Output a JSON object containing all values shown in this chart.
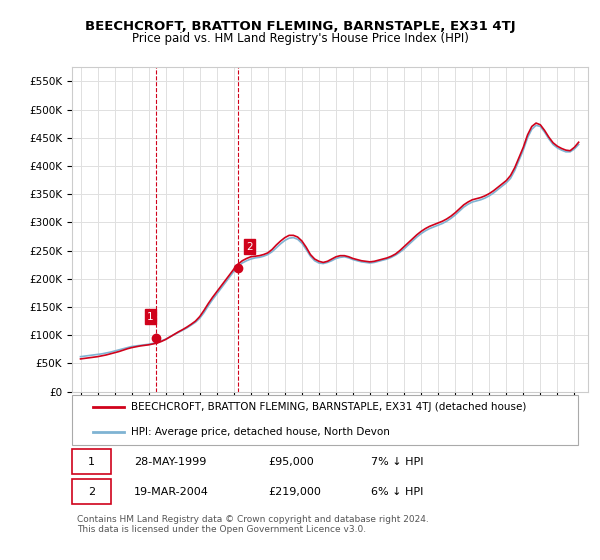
{
  "title": "BEECHCROFT, BRATTON FLEMING, BARNSTAPLE, EX31 4TJ",
  "subtitle": "Price paid vs. HM Land Registry's House Price Index (HPI)",
  "ylabel_ticks": [
    "£0",
    "£50K",
    "£100K",
    "£150K",
    "£200K",
    "£250K",
    "£300K",
    "£350K",
    "£400K",
    "£450K",
    "£500K",
    "£550K"
  ],
  "ytick_values": [
    0,
    50000,
    100000,
    150000,
    200000,
    250000,
    300000,
    350000,
    400000,
    450000,
    500000,
    550000
  ],
  "ylim": [
    0,
    575000
  ],
  "sale1_date": 1999.41,
  "sale1_price": 95000,
  "sale1_label": "1",
  "sale2_date": 2004.22,
  "sale2_price": 219000,
  "sale2_label": "2",
  "red_color": "#d0021b",
  "blue_color": "#7fb3d3",
  "vline_color": "#d0021b",
  "legend_label_red": "BEECHCROFT, BRATTON FLEMING, BARNSTAPLE, EX31 4TJ (detached house)",
  "legend_label_blue": "HPI: Average price, detached house, North Devon",
  "table_data": [
    {
      "num": "1",
      "date": "28-MAY-1999",
      "price": "£95,000",
      "hpi": "7% ↓ HPI"
    },
    {
      "num": "2",
      "date": "19-MAR-2004",
      "price": "£219,000",
      "hpi": "6% ↓ HPI"
    }
  ],
  "footer": "Contains HM Land Registry data © Crown copyright and database right 2024.\nThis data is licensed under the Open Government Licence v3.0.",
  "background_color": "#ffffff",
  "grid_color": "#e0e0e0",
  "hpi_data_years": [
    1995.0,
    1995.25,
    1995.5,
    1995.75,
    1996.0,
    1996.25,
    1996.5,
    1996.75,
    1997.0,
    1997.25,
    1997.5,
    1997.75,
    1998.0,
    1998.25,
    1998.5,
    1998.75,
    1999.0,
    1999.25,
    1999.5,
    1999.75,
    2000.0,
    2000.25,
    2000.5,
    2000.75,
    2001.0,
    2001.25,
    2001.5,
    2001.75,
    2002.0,
    2002.25,
    2002.5,
    2002.75,
    2003.0,
    2003.25,
    2003.5,
    2003.75,
    2004.0,
    2004.25,
    2004.5,
    2004.75,
    2005.0,
    2005.25,
    2005.5,
    2005.75,
    2006.0,
    2006.25,
    2006.5,
    2006.75,
    2007.0,
    2007.25,
    2007.5,
    2007.75,
    2008.0,
    2008.25,
    2008.5,
    2008.75,
    2009.0,
    2009.25,
    2009.5,
    2009.75,
    2010.0,
    2010.25,
    2010.5,
    2010.75,
    2011.0,
    2011.25,
    2011.5,
    2011.75,
    2012.0,
    2012.25,
    2012.5,
    2012.75,
    2013.0,
    2013.25,
    2013.5,
    2013.75,
    2014.0,
    2014.25,
    2014.5,
    2014.75,
    2015.0,
    2015.25,
    2015.5,
    2015.75,
    2016.0,
    2016.25,
    2016.5,
    2016.75,
    2017.0,
    2017.25,
    2017.5,
    2017.75,
    2018.0,
    2018.25,
    2018.5,
    2018.75,
    2019.0,
    2019.25,
    2019.5,
    2019.75,
    2020.0,
    2020.25,
    2020.5,
    2020.75,
    2021.0,
    2021.25,
    2021.5,
    2021.75,
    2022.0,
    2022.25,
    2022.5,
    2022.75,
    2023.0,
    2023.25,
    2023.5,
    2023.75,
    2024.0,
    2024.25
  ],
  "hpi_values": [
    62000,
    63000,
    64000,
    65000,
    66000,
    67000,
    68500,
    70000,
    72000,
    74000,
    76000,
    78000,
    80000,
    81000,
    82000,
    83000,
    84000,
    85500,
    87000,
    90000,
    93000,
    97000,
    101000,
    105000,
    109000,
    113000,
    118000,
    123000,
    130000,
    140000,
    152000,
    163000,
    173000,
    183000,
    193000,
    203000,
    213000,
    222000,
    228000,
    232000,
    235000,
    237000,
    238000,
    240000,
    243000,
    248000,
    255000,
    262000,
    268000,
    272000,
    273000,
    270000,
    263000,
    252000,
    240000,
    232000,
    228000,
    227000,
    229000,
    232000,
    236000,
    238000,
    239000,
    237000,
    234000,
    232000,
    230000,
    229000,
    228000,
    229000,
    231000,
    233000,
    235000,
    238000,
    242000,
    247000,
    253000,
    260000,
    267000,
    274000,
    280000,
    285000,
    289000,
    292000,
    295000,
    298000,
    302000,
    307000,
    313000,
    320000,
    327000,
    332000,
    336000,
    338000,
    340000,
    343000,
    347000,
    352000,
    358000,
    364000,
    370000,
    378000,
    392000,
    410000,
    428000,
    450000,
    465000,
    472000,
    470000,
    460000,
    448000,
    438000,
    432000,
    428000,
    425000,
    425000,
    430000,
    438000
  ],
  "red_line_years": [
    1995.0,
    1995.25,
    1995.5,
    1995.75,
    1996.0,
    1996.25,
    1996.5,
    1996.75,
    1997.0,
    1997.25,
    1997.5,
    1997.75,
    1998.0,
    1998.25,
    1998.5,
    1998.75,
    1999.0,
    1999.25,
    1999.5,
    1999.75,
    2000.0,
    2000.25,
    2000.5,
    2000.75,
    2001.0,
    2001.25,
    2001.5,
    2001.75,
    2002.0,
    2002.25,
    2002.5,
    2002.75,
    2003.0,
    2003.25,
    2003.5,
    2003.75,
    2004.0,
    2004.25,
    2004.5,
    2004.75,
    2005.0,
    2005.25,
    2005.5,
    2005.75,
    2006.0,
    2006.25,
    2006.5,
    2006.75,
    2007.0,
    2007.25,
    2007.5,
    2007.75,
    2008.0,
    2008.25,
    2008.5,
    2008.75,
    2009.0,
    2009.25,
    2009.5,
    2009.75,
    2010.0,
    2010.25,
    2010.5,
    2010.75,
    2011.0,
    2011.25,
    2011.5,
    2011.75,
    2012.0,
    2012.25,
    2012.5,
    2012.75,
    2013.0,
    2013.25,
    2013.5,
    2013.75,
    2014.0,
    2014.25,
    2014.5,
    2014.75,
    2015.0,
    2015.25,
    2015.5,
    2015.75,
    2016.0,
    2016.25,
    2016.5,
    2016.75,
    2017.0,
    2017.25,
    2017.5,
    2017.75,
    2018.0,
    2018.25,
    2018.5,
    2018.75,
    2019.0,
    2019.25,
    2019.5,
    2019.75,
    2020.0,
    2020.25,
    2020.5,
    2020.75,
    2021.0,
    2021.25,
    2021.5,
    2021.75,
    2022.0,
    2022.25,
    2022.5,
    2022.75,
    2023.0,
    2023.25,
    2023.5,
    2023.75,
    2024.0,
    2024.25
  ],
  "red_line_values": [
    58000,
    59000,
    60000,
    61000,
    62000,
    63500,
    65000,
    67000,
    69000,
    71000,
    73500,
    76000,
    78000,
    79500,
    81000,
    82000,
    83000,
    84500,
    86000,
    89000,
    92500,
    97000,
    101500,
    106000,
    110000,
    114500,
    119500,
    125000,
    133000,
    144000,
    156000,
    167000,
    177000,
    187000,
    197000,
    207000,
    217000,
    226000,
    232000,
    236000,
    239000,
    240000,
    241000,
    243000,
    246000,
    252000,
    260000,
    267000,
    273000,
    277000,
    277000,
    274000,
    267000,
    256000,
    243000,
    235000,
    231000,
    229000,
    231000,
    235000,
    239000,
    241000,
    241000,
    239000,
    236000,
    234000,
    232000,
    231000,
    230000,
    231000,
    233000,
    235000,
    237000,
    240000,
    244000,
    250000,
    257000,
    264000,
    271000,
    278000,
    284000,
    289000,
    293000,
    296000,
    299000,
    302000,
    306000,
    311000,
    317000,
    324000,
    331000,
    336000,
    340000,
    342000,
    344000,
    347000,
    351000,
    356000,
    362000,
    368000,
    374000,
    383000,
    397000,
    415000,
    433000,
    455000,
    470000,
    476000,
    473000,
    463000,
    451000,
    441000,
    435000,
    431000,
    428000,
    427000,
    433000,
    442000
  ]
}
